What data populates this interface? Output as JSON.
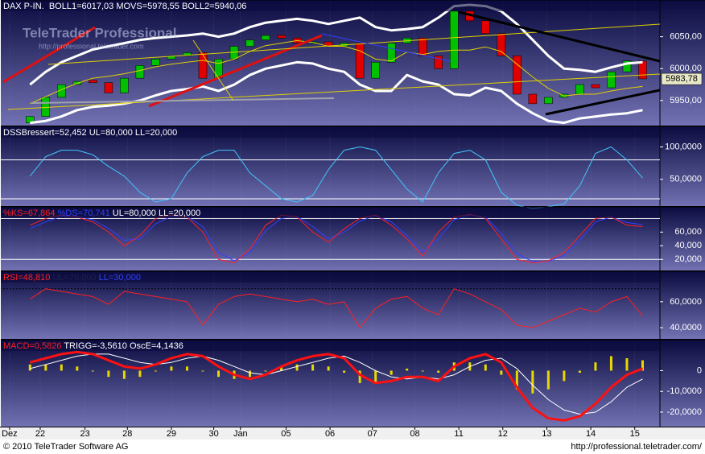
{
  "watermark": {
    "title": "TeleTrader Professional",
    "url": "http://professional.teletrader.com"
  },
  "footer": {
    "copyright": "© 2010 TeleTrader Software AG",
    "url": "http://professional.teletrader.com/"
  },
  "x_axis": {
    "xlim": [
      -1.5,
      40
    ],
    "xticks": [
      {
        "value": -1.3,
        "label": "Dez"
      },
      {
        "value": 0.65,
        "label": "22"
      },
      {
        "value": 3.5,
        "label": "23"
      },
      {
        "value": 6.2,
        "label": "28"
      },
      {
        "value": 9.0,
        "label": "29"
      },
      {
        "value": 11.7,
        "label": "30"
      },
      {
        "value": 13.4,
        "label": "Jan"
      },
      {
        "value": 16.3,
        "label": "05"
      },
      {
        "value": 19.1,
        "label": "06"
      },
      {
        "value": 21.8,
        "label": "07"
      },
      {
        "value": 24.5,
        "label": "08"
      },
      {
        "value": 27.3,
        "label": "11"
      },
      {
        "value": 30.1,
        "label": "12"
      },
      {
        "value": 32.9,
        "label": "13"
      },
      {
        "value": 35.7,
        "label": "14"
      },
      {
        "value": 38.5,
        "label": "15"
      }
    ]
  },
  "chart_data": [
    {
      "type": "candlestick",
      "header": [
        {
          "text": "DAX P-IN.  BOLL1=6017,03 MOVS=5978,55 BOLL2=5940,06",
          "color": "#ffffff"
        }
      ],
      "ylim": [
        5912,
        6100
      ],
      "yticks": [
        {
          "value": 6050,
          "label": "6050,00"
        },
        {
          "value": 6000,
          "label": "6000,00"
        },
        {
          "value": 5950,
          "label": "5950,00"
        }
      ],
      "last_price": {
        "value": 5983.78,
        "label": "5983,78"
      },
      "up_color": "#00c000",
      "down_color": "#e00000",
      "series": [
        {
          "kind": "candle",
          "open": [
            5915,
            5925,
            5955,
            5975,
            5982,
            5978,
            5962,
            5985,
            6005,
            6015,
            6020,
            6025,
            5985,
            6015,
            6035,
            6045,
            6052,
            6048,
            6040,
            6042,
            6035,
            6040,
            5985,
            6010,
            6040,
            6048,
            6020,
            6000,
            6090,
            6075,
            6055,
            6020,
            5960,
            5945,
            5955,
            5960,
            5975,
            5970,
            5995,
            6012
          ],
          "values": [
            5925,
            5955,
            5975,
            5980,
            5978,
            5962,
            5985,
            6005,
            6015,
            6020,
            6025,
            5985,
            6015,
            6035,
            6045,
            6052,
            6048,
            6040,
            6042,
            6035,
            6040,
            5985,
            6010,
            6040,
            6048,
            6020,
            6000,
            6090,
            6075,
            6055,
            6020,
            5960,
            5945,
            5955,
            5960,
            5975,
            5970,
            5995,
            6012,
            5984
          ]
        },
        {
          "kind": "line",
          "color": "#ffffff",
          "width": 3,
          "values": [
            5975,
            5995,
            6010,
            6020,
            6030,
            6035,
            6040,
            6045,
            6048,
            6050,
            6052,
            6055,
            6050,
            6055,
            6065,
            6072,
            6075,
            6078,
            6075,
            6070,
            6075,
            6080,
            6065,
            6060,
            6062,
            6065,
            6080,
            6098,
            6100,
            6098,
            6090,
            6070,
            6045,
            6020,
            6000,
            5998,
            5995,
            6002,
            6008,
            6010
          ]
        },
        {
          "kind": "line",
          "color": "#e0d000",
          "width": 1,
          "values": [
            5945,
            5956,
            5967,
            5977,
            5985,
            5988,
            5992,
            5997,
            6003,
            6007,
            6010,
            6013,
            6008,
            6015,
            6027,
            6036,
            6040,
            6044,
            6041,
            6035,
            6035,
            6028,
            6015,
            6012,
            6026,
            6022,
            6027,
            6029,
            6029,
            6034,
            6027,
            6007,
            5987,
            5969,
            5957,
            5960,
            5960,
            5965,
            5969,
            5972
          ]
        },
        {
          "kind": "line",
          "color": "#ffffff",
          "width": 3,
          "values": [
            5915,
            5918,
            5925,
            5935,
            5940,
            5942,
            5945,
            5950,
            5958,
            5965,
            5968,
            5972,
            5965,
            5975,
            5990,
            6000,
            6005,
            6010,
            6008,
            6000,
            5995,
            5975,
            5965,
            5965,
            5990,
            5980,
            5975,
            5960,
            5958,
            5970,
            5965,
            5945,
            5930,
            5918,
            5915,
            5922,
            5925,
            5928,
            5930,
            5935
          ]
        }
      ]
    },
    {
      "type": "line",
      "header": [
        {
          "text": "DSSBressert=52,452 UL=80,000 LL=20,000",
          "color": "#ffffff"
        }
      ],
      "ylim": [
        10,
        128
      ],
      "yticks": [
        {
          "value": 100,
          "label": "100,0000"
        },
        {
          "value": 50,
          "label": "50,0000"
        }
      ],
      "ref_lines": [
        80,
        20
      ],
      "ref_color": "#ffffff",
      "series": [
        {
          "kind": "line",
          "color": "#40c8ff",
          "width": 1,
          "values": [
            55,
            85,
            95,
            95,
            88,
            70,
            55,
            30,
            15,
            20,
            60,
            85,
            95,
            95,
            60,
            40,
            20,
            15,
            25,
            65,
            95,
            100,
            95,
            65,
            35,
            15,
            60,
            90,
            95,
            80,
            30,
            10,
            5,
            8,
            12,
            40,
            90,
            100,
            80,
            52
          ]
        }
      ]
    },
    {
      "type": "line",
      "header": [
        {
          "text": "%KS=67,864",
          "color": "#ff2020"
        },
        {
          "text": " %DS=70,741",
          "color": "#3040ff"
        },
        {
          "text": " UL=80,000 LL=20,000",
          "color": "#ffffff"
        }
      ],
      "ylim": [
        5,
        91
      ],
      "yticks": [
        {
          "value": 60,
          "label": "60,000"
        },
        {
          "value": 40,
          "label": "40,000"
        },
        {
          "value": 20,
          "label": "20,000"
        }
      ],
      "ref_lines": [
        80,
        20
      ],
      "ref_color": "#ffffff",
      "series": [
        {
          "kind": "line",
          "color": "#3040ff",
          "width": 1,
          "values": [
            65,
            75,
            83,
            83,
            78,
            65,
            48,
            50,
            72,
            83,
            83,
            68,
            30,
            18,
            30,
            62,
            80,
            83,
            68,
            50,
            60,
            76,
            84,
            75,
            55,
            30,
            50,
            78,
            85,
            82,
            58,
            28,
            17,
            17,
            26,
            48,
            75,
            82,
            74,
            71
          ]
        },
        {
          "kind": "line",
          "color": "#ff2020",
          "width": 1,
          "values": [
            70,
            80,
            85,
            82,
            75,
            60,
            40,
            55,
            80,
            85,
            82,
            60,
            20,
            15,
            35,
            70,
            85,
            82,
            60,
            45,
            65,
            80,
            85,
            70,
            50,
            25,
            60,
            82,
            86,
            80,
            50,
            20,
            15,
            18,
            30,
            55,
            80,
            82,
            70,
            68
          ]
        }
      ]
    },
    {
      "type": "line",
      "header": [
        {
          "text": "RSI=48,810",
          "color": "#ff2020"
        },
        {
          "text": " UL=70,000",
          "color": "#20204a"
        },
        {
          "text": " LL=30,000",
          "color": "#3040ff"
        }
      ],
      "ylim": [
        32,
        81
      ],
      "yticks": [
        {
          "value": 60,
          "label": "60,0000"
        },
        {
          "value": 40,
          "label": "40,0000"
        }
      ],
      "ref_lines": [
        70
      ],
      "ref_color": "#000000",
      "series": [
        {
          "kind": "line",
          "color": "#ff2020",
          "width": 1,
          "values": [
            62,
            70,
            68,
            66,
            64,
            58,
            68,
            66,
            64,
            62,
            60,
            42,
            58,
            64,
            66,
            64,
            62,
            60,
            62,
            58,
            60,
            40,
            55,
            62,
            64,
            55,
            50,
            70,
            66,
            60,
            54,
            42,
            40,
            45,
            50,
            55,
            52,
            60,
            64,
            49
          ]
        }
      ]
    },
    {
      "type": "combo",
      "header": [
        {
          "text": "MACD=0,5826",
          "color": "#ff2020"
        },
        {
          "text": " TRIGG=-3,5610 OscE=4,1436",
          "color": "#ffffff"
        }
      ],
      "ylim": [
        -27,
        13
      ],
      "yticks": [
        0,
        {
          "value": -10,
          "label": "-10,0000"
        },
        {
          "value": -20,
          "label": "-20,0000"
        }
      ],
      "series": [
        {
          "kind": "bar",
          "color": "#e8d800",
          "values": [
            3,
            3,
            3,
            2,
            0,
            -3,
            -4,
            -3,
            0,
            2,
            2,
            0,
            -3,
            -4,
            -3,
            0,
            2,
            3,
            3,
            2,
            -1,
            -6,
            -6,
            -2,
            1,
            0,
            -1,
            4,
            4,
            3,
            -2,
            -9,
            -11,
            -9,
            -5,
            -1,
            4,
            7,
            6,
            5
          ]
        },
        {
          "kind": "line",
          "color": "#ffffff",
          "width": 1,
          "values": [
            1,
            3,
            5,
            7,
            8,
            8,
            6,
            4,
            3,
            4,
            6,
            7,
            5,
            2,
            -1,
            -2,
            0,
            2,
            4,
            6,
            7,
            4,
            0,
            -3,
            -4,
            -3,
            -4,
            -2,
            2,
            5,
            6,
            1,
            -7,
            -14,
            -19,
            -21,
            -20,
            -15,
            -8,
            -4
          ]
        },
        {
          "kind": "line",
          "color": "#ff1010",
          "width": 3,
          "values": [
            4,
            6,
            8,
            9,
            8,
            5,
            2,
            1,
            3,
            6,
            8,
            7,
            2,
            -2,
            -4,
            -2,
            2,
            5,
            7,
            8,
            6,
            -2,
            -6,
            -5,
            -3,
            -3,
            -5,
            2,
            6,
            8,
            4,
            -8,
            -18,
            -23,
            -24,
            -22,
            -16,
            -8,
            -2,
            1
          ]
        }
      ]
    }
  ]
}
